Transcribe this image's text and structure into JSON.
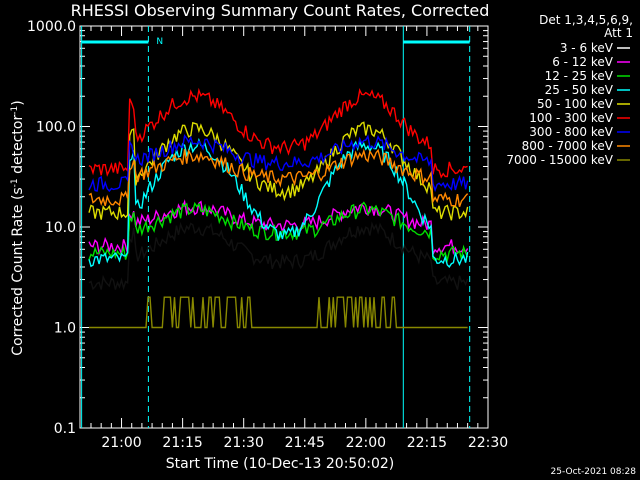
{
  "chart_data": {
    "type": "line",
    "title": "RHESSI Observing Summary Count Rates, Corrected",
    "xlabel": "Start Time (10-Dec-13 20:50:02)",
    "ylabel_main": "Corrected Count Rate (s",
    "ylabel_sup1": "-1",
    "ylabel_mid": " detector",
    "ylabel_sup2": "-1",
    "ylabel_end": ")",
    "yscale": "log",
    "ylim": [
      0.1,
      1000
    ],
    "xlim_minutes": [
      20.83,
      22.5
    ],
    "x_ticks": [
      "21:00",
      "21:15",
      "21:30",
      "21:45",
      "22:00",
      "22:15",
      "22:30"
    ],
    "y_ticks": [
      "0.1",
      "1.0",
      "10.0",
      "100.0",
      "1000.0"
    ],
    "legend_header": [
      "Det 1,3,4,5,6,9,",
      "Att 1"
    ],
    "legend_position": "right",
    "annotation": "N",
    "timestamp": "25-Oct-2021 08:28",
    "series": [
      {
        "name": "3 - 6 keV",
        "color": "#000000",
        "quiet": 2.8,
        "peak": 10
      },
      {
        "name": "6 - 12 keV",
        "color": "#ff00ff",
        "quiet": 6.5,
        "peak": 16
      },
      {
        "name": "12 - 25 keV",
        "color": "#00dd00",
        "quiet": 5.5,
        "peak": 15
      },
      {
        "name": "25 - 50 keV",
        "color": "#00ffff",
        "quiet": 4.8,
        "peak": 65
      },
      {
        "name": "50 - 100 keV",
        "color": "#dddd00",
        "quiet": 14,
        "peak": 95
      },
      {
        "name": "100 - 300 keV",
        "color": "#ff0000",
        "quiet": 38,
        "peak": 200
      },
      {
        "name": "300 - 800 keV",
        "color": "#0000ff",
        "quiet": 27,
        "peak": 72
      },
      {
        "name": "800 - 7000 keV",
        "color": "#ff8800",
        "quiet": 19,
        "peak": 52
      },
      {
        "name": "7000 - 15000 keV",
        "color": "#888800",
        "quiet": 1.0,
        "peak": 2
      }
    ]
  },
  "colors": {
    "background": "#000000",
    "axis": "#ffffff",
    "marker": "#00ffff"
  }
}
